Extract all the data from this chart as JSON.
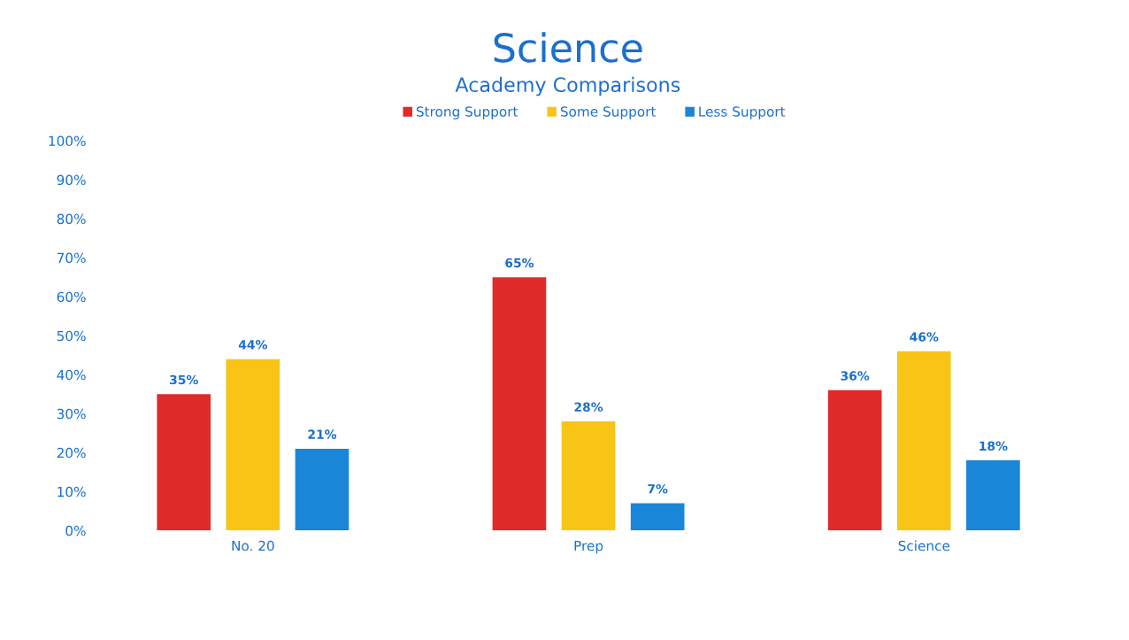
{
  "chart_data": {
    "type": "bar",
    "title": "Science",
    "subtitle": "Academy Comparisons",
    "categories": [
      "No. 20",
      "Prep",
      "Science"
    ],
    "series": [
      {
        "name": "Strong Support",
        "color": "#e02b2b",
        "values": [
          35,
          65,
          36
        ],
        "value_labels": [
          "35%",
          "65%",
          "36%"
        ]
      },
      {
        "name": "Some Support",
        "color": "#f8c516",
        "values": [
          44,
          28,
          46
        ],
        "value_labels": [
          "44%",
          "28%",
          "46%"
        ]
      },
      {
        "name": "Less Support",
        "color": "#1a86d8",
        "values": [
          21,
          7,
          18
        ],
        "value_labels": [
          "21%",
          "7%",
          "18%"
        ]
      }
    ],
    "ylim": [
      0,
      100
    ],
    "yticks": [
      {
        "value": 0,
        "label": "0%"
      },
      {
        "value": 10,
        "label": "10%"
      },
      {
        "value": 20,
        "label": "20%"
      },
      {
        "value": 30,
        "label": "30%"
      },
      {
        "value": 40,
        "label": "40%"
      },
      {
        "value": 50,
        "label": "50%"
      },
      {
        "value": 60,
        "label": "60%"
      },
      {
        "value": 70,
        "label": "70%"
      },
      {
        "value": 80,
        "label": "80%"
      },
      {
        "value": 90,
        "label": "90%"
      },
      {
        "value": 100,
        "label": "100%"
      }
    ],
    "grid": false,
    "legend": "top"
  }
}
